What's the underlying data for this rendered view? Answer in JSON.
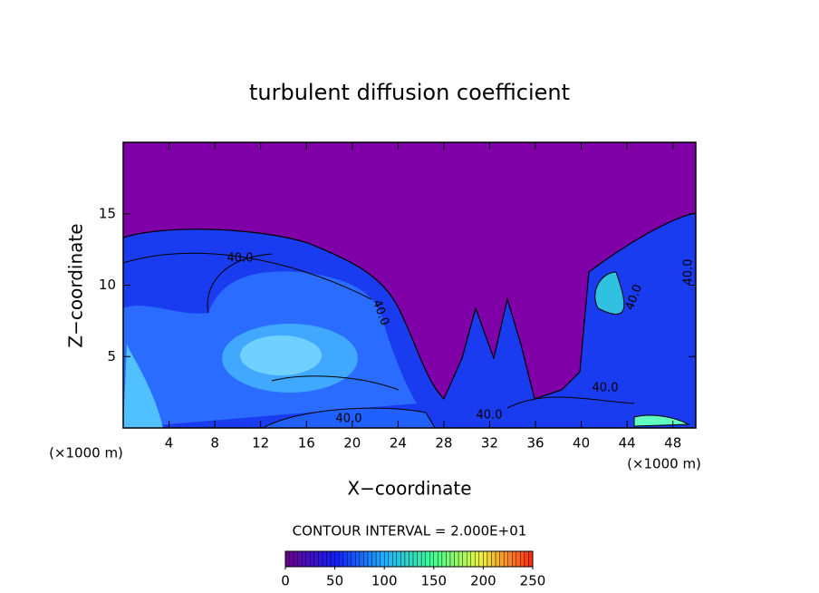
{
  "chart_data": {
    "type": "contour",
    "title": "turbulent diffusion coefficient",
    "xlabel": "X−coordinate",
    "ylabel": "Z−coordinate",
    "xunit": "(×1000 m)",
    "yunit": "(×1000 m)",
    "xlim": [
      0,
      50
    ],
    "ylim": [
      0,
      20
    ],
    "xticks": [
      4,
      8,
      12,
      16,
      20,
      24,
      28,
      32,
      36,
      40,
      44,
      48
    ],
    "yticks": [
      5,
      10,
      15
    ],
    "contour_labels": [
      "40.0",
      "40.0",
      "40.0",
      "40.0",
      "40.0",
      "40.0",
      "40.0"
    ],
    "contour_interval": "CONTOUR INTERVAL = 2.000E+01",
    "colorbar": {
      "lim": [
        0,
        250
      ],
      "ticks": [
        0,
        50,
        100,
        150,
        200,
        250
      ],
      "colors": [
        "#6a0090",
        "#1020ff",
        "#20b0ff",
        "#40ff90",
        "#f0f040",
        "#ff3010"
      ]
    }
  }
}
